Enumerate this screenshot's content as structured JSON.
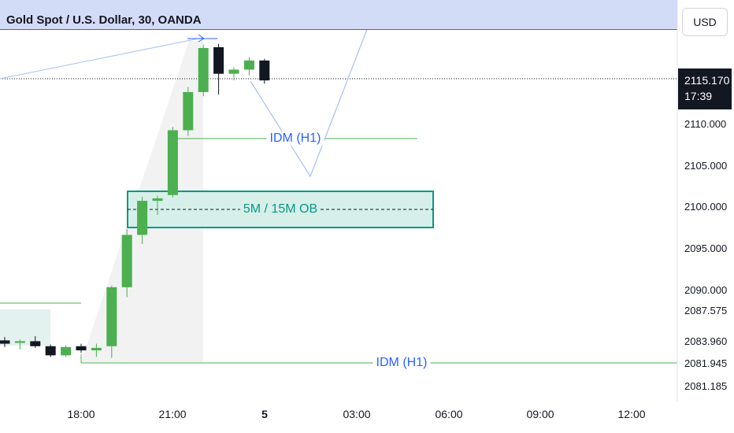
{
  "header": {
    "title": "Gold Spot / U.S. Dollar, 30, OANDA",
    "currency_button": "USD"
  },
  "price_scale": {
    "last_price": "2115.170",
    "countdown": "17:39",
    "tick_labels": [
      "2110.000",
      "2105.000",
      "2100.000",
      "2095.000",
      "2090.000",
      "2087.575",
      "2083.960",
      "2081.945",
      "2081.185"
    ]
  },
  "annotations": {
    "idm_upper": "IDM (H1)",
    "order_block": "5M / 15M OB",
    "idm_lower": "IDM (H1)"
  },
  "colors": {
    "up_candle": "#4caf50",
    "down_candle": "#131722",
    "idm_line": "#4caf50",
    "idm_text": "#2962ff",
    "order_block_border": "#089981",
    "order_block_fill": "#d6efe9",
    "projection_line": "#a7c0f5",
    "header_band": "#d3dcf7"
  },
  "chart_data": {
    "type": "candlestick",
    "symbol": "Gold Spot / U.S. Dollar",
    "timeframe": "30",
    "source": "OANDA",
    "x_tick_labels": [
      "18:00",
      "21:00",
      "5",
      "03:00",
      "06:00",
      "09:00",
      "12:00"
    ],
    "y_range": [
      2080,
      2117
    ],
    "last_price": 2115.17,
    "candles": [
      {
        "o": 2083.9,
        "h": 2084.3,
        "l": 2083.1,
        "c": 2083.5
      },
      {
        "o": 2083.6,
        "h": 2084.0,
        "l": 2082.8,
        "c": 2083.8
      },
      {
        "o": 2083.8,
        "h": 2084.4,
        "l": 2083.0,
        "c": 2083.2
      },
      {
        "o": 2083.2,
        "h": 2083.4,
        "l": 2081.9,
        "c": 2082.1
      },
      {
        "o": 2082.1,
        "h": 2083.3,
        "l": 2081.9,
        "c": 2083.1
      },
      {
        "o": 2083.2,
        "h": 2083.5,
        "l": 2082.4,
        "c": 2082.7
      },
      {
        "o": 2082.7,
        "h": 2083.5,
        "l": 2081.9,
        "c": 2083.0
      },
      {
        "o": 2083.2,
        "h": 2090.5,
        "l": 2081.8,
        "c": 2090.3
      },
      {
        "o": 2090.3,
        "h": 2097.3,
        "l": 2089.1,
        "c": 2096.6
      },
      {
        "o": 2096.6,
        "h": 2101.2,
        "l": 2095.5,
        "c": 2100.7
      },
      {
        "o": 2100.7,
        "h": 2101.3,
        "l": 2099.0,
        "c": 2101.0
      },
      {
        "o": 2101.4,
        "h": 2109.6,
        "l": 2101.1,
        "c": 2109.2
      },
      {
        "o": 2109.2,
        "h": 2114.4,
        "l": 2108.5,
        "c": 2113.8
      },
      {
        "o": 2113.8,
        "h": 2119.5,
        "l": 2113.3,
        "c": 2119.1
      },
      {
        "o": 2119.2,
        "h": 2119.6,
        "l": 2113.5,
        "c": 2116.0
      },
      {
        "o": 2116.0,
        "h": 2116.8,
        "l": 2115.2,
        "c": 2116.5
      },
      {
        "o": 2116.5,
        "h": 2118.0,
        "l": 2115.8,
        "c": 2117.6
      },
      {
        "o": 2117.6,
        "h": 2117.8,
        "l": 2114.8,
        "c": 2115.2
      }
    ]
  }
}
